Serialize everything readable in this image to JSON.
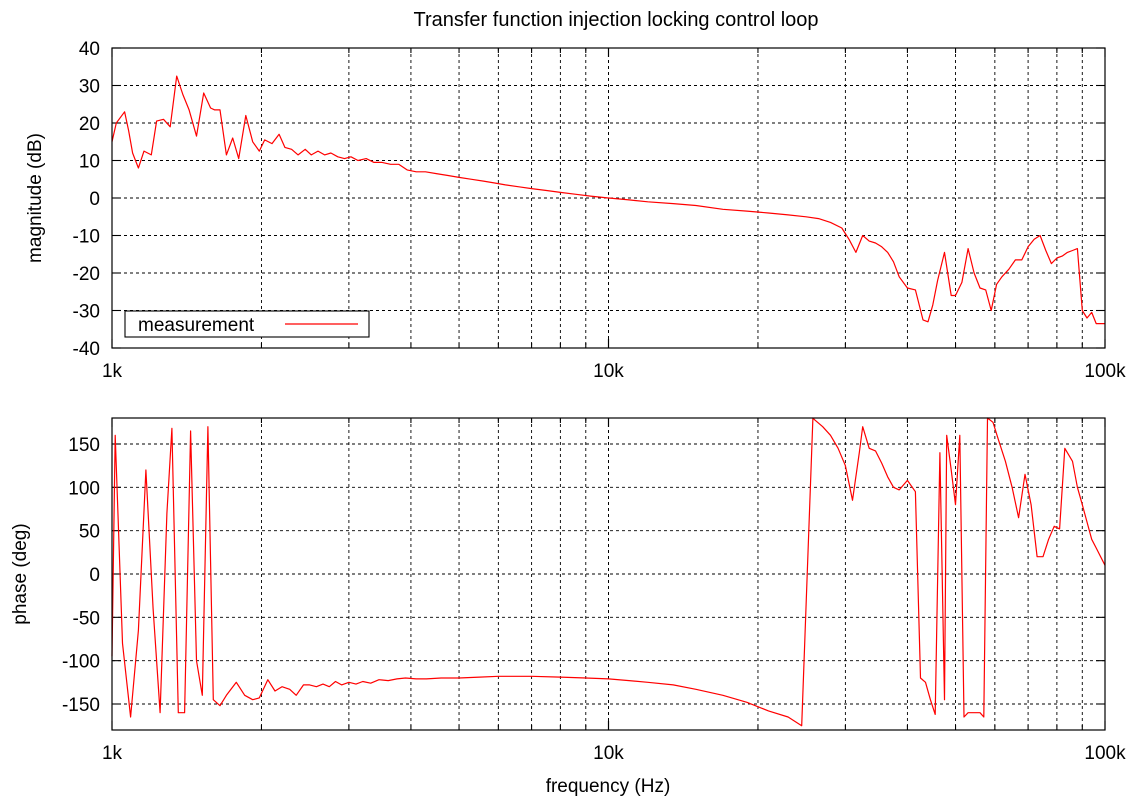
{
  "chart_data": [
    {
      "type": "line",
      "title": "Transfer function injection locking control loop",
      "xlabel": "",
      "ylabel": "magnitude (dB)",
      "xscale": "log",
      "xlim": [
        1000,
        100000
      ],
      "ylim": [
        -40,
        40
      ],
      "xticks": [
        {
          "v": 1000,
          "label": "1k"
        },
        {
          "v": 10000,
          "label": "10k"
        },
        {
          "v": 100000,
          "label": "100k"
        }
      ],
      "yticks": [
        {
          "v": 40,
          "label": "40"
        },
        {
          "v": 30,
          "label": "30"
        },
        {
          "v": 20,
          "label": "20"
        },
        {
          "v": 10,
          "label": "10"
        },
        {
          "v": 0,
          "label": "0"
        },
        {
          "v": -10,
          "label": "-10"
        },
        {
          "v": -20,
          "label": "-20"
        },
        {
          "v": -30,
          "label": "-30"
        },
        {
          "v": -40,
          "label": "-40"
        }
      ],
      "grid": true,
      "legend": {
        "position": "bottom-left",
        "entries": [
          "measurement"
        ]
      },
      "series": [
        {
          "name": "measurement",
          "color": "#ff0000",
          "x": [
            1000,
            1020,
            1060,
            1080,
            1100,
            1130,
            1160,
            1200,
            1230,
            1270,
            1310,
            1350,
            1390,
            1430,
            1480,
            1530,
            1580,
            1610,
            1650,
            1700,
            1750,
            1800,
            1860,
            1920,
            1980,
            2030,
            2100,
            2170,
            2230,
            2300,
            2370,
            2450,
            2520,
            2600,
            2680,
            2760,
            2850,
            2940,
            3030,
            3130,
            3250,
            3370,
            3500,
            3640,
            3780,
            3930,
            4100,
            4280,
            4500,
            4750,
            5000,
            5300,
            5600,
            5900,
            6200,
            6600,
            7000,
            7500,
            8000,
            8600,
            9200,
            10000,
            11000,
            12000,
            13500,
            15000,
            17000,
            19000,
            21000,
            23000,
            25000,
            26500,
            28000,
            29500,
            30500,
            31500,
            32500,
            33500,
            34500,
            35500,
            36500,
            37500,
            38500,
            40000,
            41500,
            43000,
            44000,
            45000,
            46000,
            47500,
            49000,
            50000,
            51500,
            53000,
            54500,
            56000,
            57500,
            59000,
            60500,
            62000,
            64000,
            66000,
            68000,
            70000,
            72000,
            74000,
            76000,
            78000,
            80000,
            82000,
            84000,
            86000,
            88000,
            90000,
            92000,
            94000,
            96000,
            98000,
            100000
          ],
          "y": [
            15,
            20,
            23,
            18,
            12,
            8,
            12.5,
            11.5,
            20.5,
            21,
            19,
            32.5,
            27.5,
            23.5,
            16.5,
            28,
            24,
            23.5,
            23.5,
            11.5,
            16,
            10.5,
            22,
            15,
            12.5,
            15.5,
            14.5,
            17,
            13.5,
            13,
            11.5,
            13,
            11.5,
            12.5,
            11.5,
            12,
            11,
            10.5,
            11,
            10,
            10.5,
            9.5,
            9.5,
            9,
            9,
            7.5,
            7,
            7,
            6.5,
            6,
            5.5,
            5,
            4.5,
            4,
            3.5,
            3,
            2.5,
            2,
            1.5,
            1,
            0.5,
            0,
            -0.5,
            -1,
            -1.5,
            -2,
            -3,
            -3.5,
            -4,
            -4.5,
            -5,
            -5.5,
            -6.5,
            -8,
            -11,
            -14.5,
            -10,
            -11.5,
            -12,
            -13,
            -14.5,
            -17,
            -21,
            -24,
            -24.5,
            -32.5,
            -33,
            -28.5,
            -22,
            -14.5,
            -26,
            -26,
            -22.5,
            -13.5,
            -20,
            -24,
            -24.5,
            -30,
            -23,
            -21,
            -19,
            -16.5,
            -16.5,
            -13,
            -11,
            -10,
            -14,
            -17.5,
            -16,
            -15.5,
            -14.5,
            -14,
            -13.5,
            -30,
            -32,
            -30.5,
            -33.5,
            -33.5,
            -33.5
          ]
        }
      ]
    },
    {
      "type": "line",
      "title": "",
      "xlabel": "frequency (Hz)",
      "ylabel": "phase (deg)",
      "xscale": "log",
      "xlim": [
        1000,
        100000
      ],
      "ylim": [
        -180,
        180
      ],
      "xticks": [
        {
          "v": 1000,
          "label": "1k"
        },
        {
          "v": 10000,
          "label": "10k"
        },
        {
          "v": 100000,
          "label": "100k"
        }
      ],
      "yticks": [
        {
          "v": 150,
          "label": "150"
        },
        {
          "v": 100,
          "label": "100"
        },
        {
          "v": 50,
          "label": "50"
        },
        {
          "v": 0,
          "label": "0"
        },
        {
          "v": -50,
          "label": "-50"
        },
        {
          "v": -100,
          "label": "-100"
        },
        {
          "v": -150,
          "label": "-150"
        }
      ],
      "grid": true,
      "series": [
        {
          "color": "#ff0000",
          "x": [
            1000,
            1015,
            1050,
            1090,
            1130,
            1170,
            1210,
            1250,
            1290,
            1320,
            1360,
            1400,
            1440,
            1480,
            1520,
            1560,
            1600,
            1650,
            1700,
            1780,
            1850,
            1920,
            1980,
            2060,
            2130,
            2200,
            2280,
            2350,
            2430,
            2500,
            2580,
            2660,
            2740,
            2820,
            2900,
            3000,
            3100,
            3200,
            3320,
            3450,
            3600,
            3750,
            3900,
            4100,
            4300,
            4600,
            5000,
            5500,
            6000,
            7000,
            8000,
            9000,
            10000,
            11000,
            12000,
            13500,
            15000,
            17000,
            19000,
            21000,
            23000,
            24500,
            25800,
            26000,
            27000,
            28000,
            29000,
            30000,
            31000,
            32000,
            32500,
            33500,
            34500,
            35500,
            36500,
            37500,
            38500,
            40000,
            41500,
            42500,
            43500,
            44500,
            45500,
            46500,
            47500,
            48000,
            49000,
            50000,
            51000,
            52000,
            53000,
            54500,
            56000,
            57000,
            58000,
            59500,
            61000,
            63000,
            65000,
            67000,
            69000,
            71000,
            73000,
            75000,
            77000,
            79000,
            81000,
            83000,
            86000,
            88000,
            90000,
            92000,
            94000,
            96000,
            98000,
            100000
          ],
          "y": [
            -95,
            160,
            -80,
            -165,
            -65,
            120,
            -40,
            -160,
            70,
            168,
            -160,
            -160,
            165,
            -100,
            -140,
            170,
            -145,
            -152,
            -140,
            -125,
            -140,
            -145,
            -143,
            -122,
            -135,
            -130,
            -133,
            -140,
            -128,
            -128,
            -130,
            -127,
            -130,
            -124,
            -128,
            -125,
            -127,
            -124,
            -126,
            -122,
            -123,
            -121,
            -120,
            -121,
            -121,
            -120,
            -120,
            -119,
            -118,
            -118,
            -119,
            -120,
            -121,
            -123,
            -125,
            -128,
            -133,
            -140,
            -148,
            -158,
            -165,
            -175,
            180,
            178,
            170,
            160,
            145,
            125,
            85,
            140,
            170,
            145,
            142,
            128,
            112,
            100,
            97,
            108,
            95,
            -120,
            -125,
            -145,
            -162,
            140,
            -145,
            160,
            120,
            80,
            160,
            -165,
            -160,
            -160,
            -160,
            -165,
            180,
            175,
            155,
            130,
            100,
            65,
            115,
            80,
            20,
            20,
            40,
            55,
            52,
            145,
            130,
            100,
            80,
            60,
            40,
            30,
            20,
            10
          ]
        }
      ]
    }
  ]
}
